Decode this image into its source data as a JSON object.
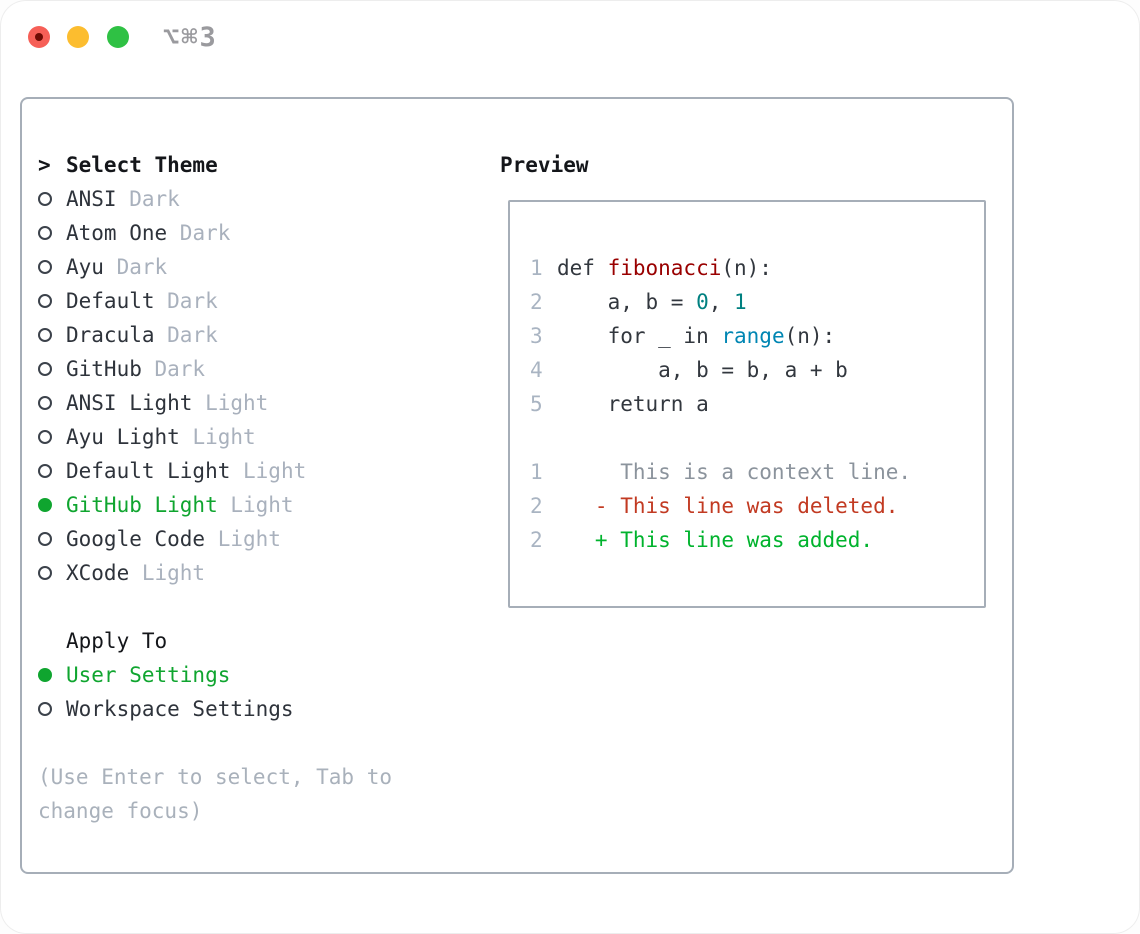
{
  "window": {
    "title": "⌥⌘3",
    "traffic_lights": {
      "red": "#f65f57",
      "red_dot": "#6e0b04",
      "yellow": "#fcbd2f",
      "green": "#2fc144"
    }
  },
  "colors": {
    "selection_green": "#0fa52f",
    "text_dark": "#2e333b",
    "tag_gray": "#a9b1bd",
    "hint_gray": "#a9b1bb",
    "panel_border": "#a6aeb8",
    "diff_deleted_red": "#c23a22",
    "diff_added_green": "#00b32d",
    "syntax_title_red": "#990000",
    "syntax_number_teal": "#008080",
    "syntax_builtin_blue": "#0086b3"
  },
  "theme_picker": {
    "header": {
      "prefix": ">",
      "label": "Select Theme"
    },
    "themes": [
      {
        "name": "ANSI",
        "tag": "Dark",
        "selected": false
      },
      {
        "name": "Atom One",
        "tag": "Dark",
        "selected": false
      },
      {
        "name": "Ayu",
        "tag": "Dark",
        "selected": false
      },
      {
        "name": "Default",
        "tag": "Dark",
        "selected": false
      },
      {
        "name": "Dracula",
        "tag": "Dark",
        "selected": false
      },
      {
        "name": "GitHub",
        "tag": "Dark",
        "selected": false
      },
      {
        "name": "ANSI Light",
        "tag": "Light",
        "selected": false
      },
      {
        "name": "Ayu Light",
        "tag": "Light",
        "selected": false
      },
      {
        "name": "Default Light",
        "tag": "Light",
        "selected": false
      },
      {
        "name": "GitHub Light",
        "tag": "Light",
        "selected": true
      },
      {
        "name": "Google Code",
        "tag": "Light",
        "selected": false
      },
      {
        "name": "XCode",
        "tag": "Light",
        "selected": false
      }
    ],
    "apply_to": {
      "label": "Apply To",
      "options": [
        {
          "name": "User Settings",
          "selected": true
        },
        {
          "name": "Workspace Settings",
          "selected": false
        }
      ]
    },
    "hint_lines": [
      "(Use Enter to select, Tab to",
      "change focus)"
    ]
  },
  "preview": {
    "label": "Preview",
    "code_lines": [
      {
        "num": "1",
        "tokens": [
          {
            "t": "def ",
            "c": "plain"
          },
          {
            "t": "fibonacci",
            "c": "title"
          },
          {
            "t": "(n):",
            "c": "plain"
          }
        ]
      },
      {
        "num": "2",
        "tokens": [
          {
            "t": "    a, b = ",
            "c": "plain"
          },
          {
            "t": "0",
            "c": "number"
          },
          {
            "t": ", ",
            "c": "plain"
          },
          {
            "t": "1",
            "c": "number"
          }
        ]
      },
      {
        "num": "3",
        "tokens": [
          {
            "t": "    for _ in ",
            "c": "plain"
          },
          {
            "t": "range",
            "c": "builtin"
          },
          {
            "t": "(n):",
            "c": "plain"
          }
        ]
      },
      {
        "num": "4",
        "tokens": [
          {
            "t": "        a, b = b, a + b",
            "c": "plain"
          }
        ]
      },
      {
        "num": "5",
        "tokens": [
          {
            "t": "    return a",
            "c": "plain"
          }
        ]
      },
      {
        "num": "",
        "tokens": []
      },
      {
        "num": "1",
        "tokens": [
          {
            "t": "     This is a context line.",
            "c": "context"
          }
        ]
      },
      {
        "num": "2",
        "tokens": [
          {
            "t": "   - This line was deleted.",
            "c": "deleted"
          }
        ]
      },
      {
        "num": "2",
        "tokens": [
          {
            "t": "   + This line was added.",
            "c": "added"
          }
        ]
      }
    ]
  }
}
